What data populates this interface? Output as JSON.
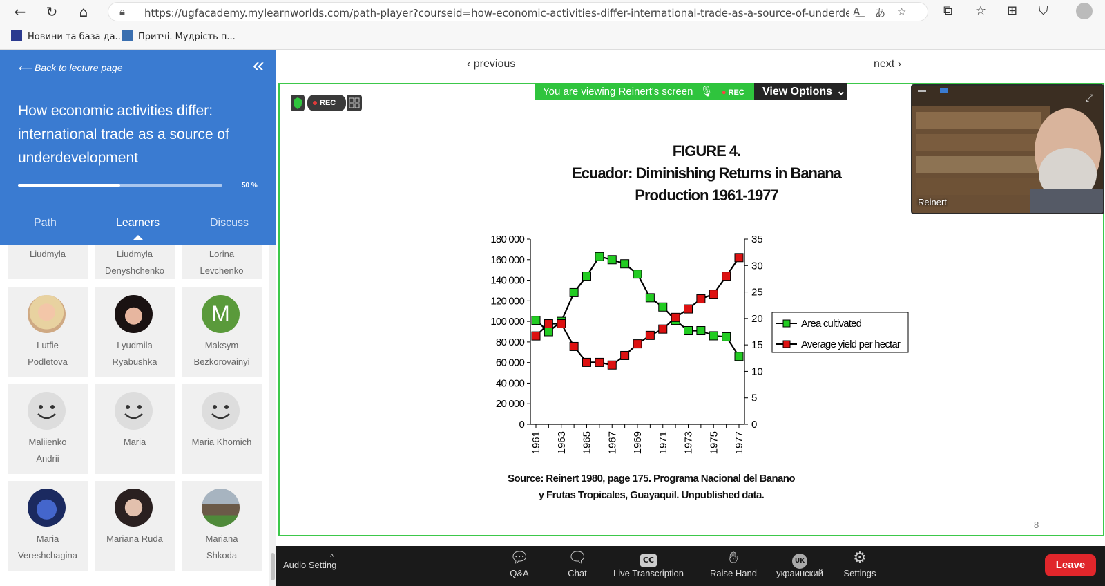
{
  "browser": {
    "url": "https://ugfacademy.mylearnworlds.com/path-player?courseid=how-economic-activities-differ-international-trade-as-a-source-of-underdevelopment&...",
    "bookmarks": [
      "Новини та база да...",
      "Притчі. Мудрість п..."
    ]
  },
  "sidebar": {
    "back_label": "Back to lecture page",
    "title": "How economic activities differ: international trade as a source of underdevelopment",
    "progress_percent": 50,
    "progress_label": "50 %",
    "tabs": [
      "Path",
      "Learners",
      "Discuss"
    ],
    "active_tab": "Learners",
    "learners": [
      {
        "line1": "Liudmyla",
        "line2": "",
        "avatar": "none"
      },
      {
        "line1": "Liudmyla",
        "line2": "Denyshchenko",
        "avatar": "none"
      },
      {
        "line1": "Lorina",
        "line2": "Levchenko",
        "avatar": "none"
      },
      {
        "line1": "Lutfie",
        "line2": "Podletova",
        "avatar": "photo"
      },
      {
        "line1": "Lyudmila",
        "line2": "Ryabushka",
        "avatar": "photo"
      },
      {
        "line1": "Maksym",
        "line2": "Bezkorovainyi",
        "avatar": "initial",
        "initial": "M"
      },
      {
        "line1": "Maliienko",
        "line2": "Andrii",
        "avatar": "smiley"
      },
      {
        "line1": "Maria",
        "line2": "",
        "avatar": "smiley"
      },
      {
        "line1": "Maria Khomich",
        "line2": "",
        "avatar": "smiley"
      },
      {
        "line1": "Maria",
        "line2": "Vereshchagina",
        "avatar": "photo"
      },
      {
        "line1": "Mariana Ruda",
        "line2": "",
        "avatar": "photo"
      },
      {
        "line1": "Mariana",
        "line2": "Shkoda",
        "avatar": "photo"
      }
    ]
  },
  "player": {
    "previous_label": "previous",
    "next_label": "next",
    "viewing_label": "You are viewing Reinert's screen",
    "rec_label": "REC",
    "view_options_label": "View Options",
    "participant_name": "Reinert",
    "slide_number": "8"
  },
  "slide": {
    "title_lines": [
      "FIGURE 4.",
      "Ecuador: Diminishing Returns in Banana",
      "Production 1961-1977"
    ],
    "source_lines": [
      "Source: Reinert 1980, page 175. Programa Nacional del Banano",
      "y Frutas Tropicales, Guayaquil. Unpublished data."
    ]
  },
  "chart_data": {
    "type": "line",
    "title": "FIGURE 4. Ecuador: Diminishing Returns in Banana Production 1961-1977",
    "x": [
      1961,
      1962,
      1963,
      1964,
      1965,
      1966,
      1967,
      1968,
      1969,
      1970,
      1971,
      1972,
      1973,
      1974,
      1975,
      1976,
      1977
    ],
    "x_tick_labels": [
      "1961",
      "1963",
      "1965",
      "1967",
      "1969",
      "1971",
      "1973",
      "1975",
      "1977"
    ],
    "y_left_ticks": [
      "0",
      "20 000",
      "40 000",
      "60 000",
      "80 000",
      "100 000",
      "120 000",
      "140 000",
      "160 000",
      "180 000"
    ],
    "y_right_ticks": [
      "0",
      "5",
      "10",
      "15",
      "20",
      "25",
      "30",
      "35"
    ],
    "y_left_lim": [
      0,
      180000
    ],
    "y_right_lim": [
      0,
      35
    ],
    "series": [
      {
        "name": "Area cultivated",
        "axis": "left",
        "color": "#22cc22",
        "values": [
          101000,
          90000,
          100000,
          128000,
          144000,
          163000,
          160000,
          156000,
          146000,
          123000,
          114000,
          101000,
          91000,
          91000,
          86000,
          85000,
          66000
        ]
      },
      {
        "name": "Average yield per hectar",
        "axis": "right",
        "color": "#dd1111",
        "values": [
          16.7,
          19,
          19,
          14.7,
          11.7,
          11.7,
          11.2,
          13,
          15.2,
          16.8,
          18,
          20.2,
          21.8,
          23.7,
          24.6,
          28,
          31.5
        ]
      }
    ],
    "legend_position": "right"
  },
  "toolbar": {
    "audio_label": "Audio Setting",
    "buttons": [
      "Q&A",
      "Chat",
      "Live Transcription",
      "Raise Hand",
      "украинский",
      "Settings"
    ],
    "cc_label": "CC",
    "language_badge": "UK",
    "leave_label": "Leave"
  }
}
